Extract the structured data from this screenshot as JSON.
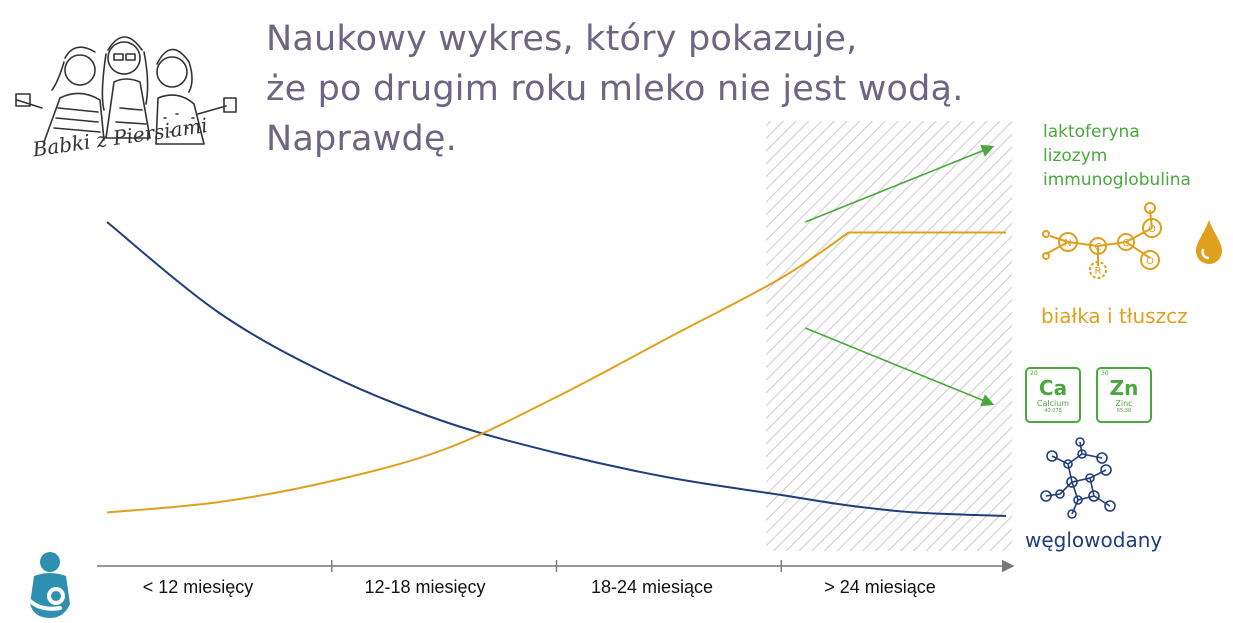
{
  "title": {
    "lines": [
      "Naukowy wykres, który pokazuje,",
      "że po drugim roku mleko nie jest wodą.",
      "Naprawdę."
    ]
  },
  "logo": {
    "text": "Babki z Piersiami"
  },
  "legend": {
    "green_items": [
      "laktoferyna",
      "lizozym",
      "immunoglobulina"
    ],
    "orange_label": "białka i tłuszcz",
    "navy_label": "węglowodany",
    "elements": [
      {
        "symbol": "Ca",
        "name": "Calcium",
        "number": "20",
        "mass": "40.078"
      },
      {
        "symbol": "Zn",
        "name": "Zinc",
        "number": "30",
        "mass": "65.38"
      }
    ]
  },
  "colors": {
    "navy": "#1f3e7a",
    "orange": "#e0a01e",
    "green": "#4aa83d",
    "title": "#6d6581",
    "teal": "#2f8fb0",
    "hatch": "#cfcfcf"
  },
  "chart_data": {
    "type": "line",
    "categories": [
      "< 12 miesięcy",
      "12-18 miesięcy",
      "18-24 miesiące",
      "> 24 miesiące"
    ],
    "highlighted_category": "> 24 miesiące",
    "x": [
      0,
      0.5,
      1,
      1.5,
      2,
      2.5,
      3,
      3.3,
      3.6,
      4
    ],
    "series": [
      {
        "color": "#1f3e7a",
        "values": [
          88,
          62,
          44,
          31,
          22,
          15,
          10,
          7,
          5,
          4
        ]
      },
      {
        "color": "#e0a01e",
        "values": [
          5,
          8,
          14,
          23,
          38,
          55,
          72,
          85,
          85,
          85
        ]
      }
    ],
    "ylim": [
      0,
      100
    ],
    "trend_arrows": [
      {
        "color": "#4aa83d",
        "direction": "up"
      },
      {
        "color": "#4aa83d",
        "direction": "down"
      }
    ],
    "grid": false,
    "legend": "right"
  }
}
